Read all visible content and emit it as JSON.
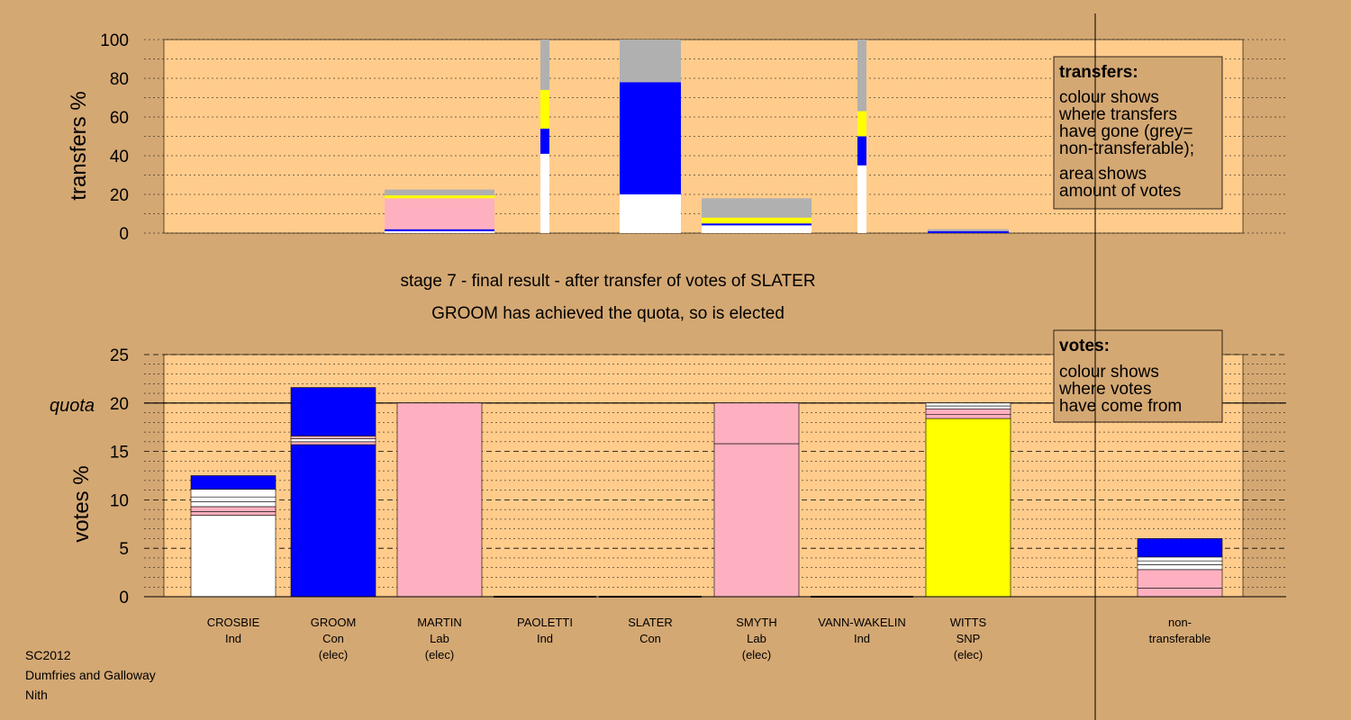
{
  "chart_data": {
    "type": "bar",
    "stage_title": "stage 7 - final result - after transfer of votes of SLATER",
    "stage_subtitle": "GROOM has achieved the quota, so is elected",
    "colors": {
      "white": "#ffffff",
      "blue": "#0000ff",
      "pink": "#ffb0c0",
      "yellow": "#ffff00",
      "grey": "#b0b0b0",
      "background": "#d4a873",
      "plot_background": "#ffcc8c"
    },
    "candidates": [
      {
        "name": "CROSBIE",
        "party": "Ind",
        "status": ""
      },
      {
        "name": "GROOM",
        "party": "Con",
        "status": "(elec)"
      },
      {
        "name": "MARTIN",
        "party": "Lab",
        "status": "(elec)"
      },
      {
        "name": "PAOLETTI",
        "party": "Ind",
        "status": ""
      },
      {
        "name": "SLATER",
        "party": "Con",
        "status": ""
      },
      {
        "name": "SMYTH",
        "party": "Lab",
        "status": "(elec)"
      },
      {
        "name": "VANN-WAKELIN",
        "party": "Ind",
        "status": ""
      },
      {
        "name": "WITTS",
        "party": "SNP",
        "status": "(elec)"
      },
      {
        "name": "non-",
        "party": "transferable",
        "status": ""
      }
    ],
    "transfers_chart": {
      "ylabel": "transfers %",
      "ylim": [
        0,
        100
      ],
      "yticks": [
        0,
        20,
        40,
        60,
        80,
        100
      ],
      "grid": "dotted",
      "legend_title": "transfers:",
      "legend_lines": [
        "colour shows",
        "where transfers",
        "have gone (grey=",
        "non-transferable);",
        "area shows",
        "amount of votes"
      ],
      "bars": [
        {
          "column": 2,
          "width": "wide",
          "segments": [
            {
              "color": "white",
              "value": 1
            },
            {
              "color": "blue",
              "value": 1
            },
            {
              "color": "pink",
              "value": 16
            },
            {
              "color": "yellow",
              "value": 1.5
            },
            {
              "color": "grey",
              "value": 3
            }
          ]
        },
        {
          "column": 3,
          "width": "thin",
          "segments": [
            {
              "color": "white",
              "value": 41
            },
            {
              "color": "blue",
              "value": 13
            },
            {
              "color": "yellow",
              "value": 20
            },
            {
              "color": "grey",
              "value": 26
            }
          ]
        },
        {
          "column": 4,
          "width": "full",
          "segments": [
            {
              "color": "white",
              "value": 20
            },
            {
              "color": "blue",
              "value": 58
            },
            {
              "color": "grey",
              "value": 22
            }
          ]
        },
        {
          "column": 5,
          "width": "wide",
          "segments": [
            {
              "color": "white",
              "value": 4
            },
            {
              "color": "blue",
              "value": 1
            },
            {
              "color": "yellow",
              "value": 3
            },
            {
              "color": "grey",
              "value": 10
            }
          ]
        },
        {
          "column": 6,
          "width": "thin",
          "segments": [
            {
              "color": "white",
              "value": 35
            },
            {
              "color": "blue",
              "value": 15
            },
            {
              "color": "yellow",
              "value": 13
            },
            {
              "color": "grey",
              "value": 37
            }
          ]
        },
        {
          "column": 7,
          "width": "medium",
          "segments": [
            {
              "color": "blue",
              "value": 1
            },
            {
              "color": "grey",
              "value": 1
            }
          ]
        }
      ]
    },
    "votes_chart": {
      "ylabel": "votes %",
      "ylim": [
        0,
        25
      ],
      "yticks": [
        0,
        5,
        10,
        15,
        20,
        25
      ],
      "quota": 20,
      "quota_label": "quota",
      "grid": "dotted",
      "legend_title": "votes:",
      "legend_lines": [
        "colour shows",
        "where votes",
        "have come from"
      ],
      "bars": [
        {
          "column": 0,
          "segments": [
            {
              "color": "white",
              "value": 8.4
            },
            {
              "color": "pink",
              "value": 0.4
            },
            {
              "color": "pink",
              "value": 0.5
            },
            {
              "color": "white",
              "value": 0.5
            },
            {
              "color": "white",
              "value": 0.5
            },
            {
              "color": "white",
              "value": 0.8
            },
            {
              "color": "blue",
              "value": 1.4
            }
          ]
        },
        {
          "column": 1,
          "segments": [
            {
              "color": "blue",
              "value": 15.7
            },
            {
              "color": "pink",
              "value": 0.3
            },
            {
              "color": "white",
              "value": 0.3
            },
            {
              "color": "pink",
              "value": 0.3
            },
            {
              "color": "blue",
              "value": 5
            }
          ]
        },
        {
          "column": 2,
          "segments": [
            {
              "color": "pink",
              "value": 20
            }
          ]
        },
        {
          "column": 3,
          "segments": []
        },
        {
          "column": 4,
          "segments": []
        },
        {
          "column": 5,
          "segments": [
            {
              "color": "pink",
              "value": 15.8
            },
            {
              "color": "pink",
              "value": 4.2
            }
          ]
        },
        {
          "column": 6,
          "segments": []
        },
        {
          "column": 7,
          "segments": [
            {
              "color": "yellow",
              "value": 18.4
            },
            {
              "color": "pink",
              "value": 0.4
            },
            {
              "color": "pink",
              "value": 0.6
            },
            {
              "color": "white",
              "value": 0.3
            },
            {
              "color": "white",
              "value": 0.3
            }
          ]
        },
        {
          "column": 8,
          "segments": [
            {
              "color": "pink",
              "value": 0.9
            },
            {
              "color": "pink",
              "value": 1.9
            },
            {
              "color": "white",
              "value": 0.5
            },
            {
              "color": "white",
              "value": 0.4
            },
            {
              "color": "white",
              "value": 0.4
            },
            {
              "color": "blue",
              "value": 1.9
            }
          ]
        }
      ]
    }
  },
  "footer": {
    "line1": "SC2012",
    "line2": "Dumfries and Galloway",
    "line3": "Nith"
  }
}
